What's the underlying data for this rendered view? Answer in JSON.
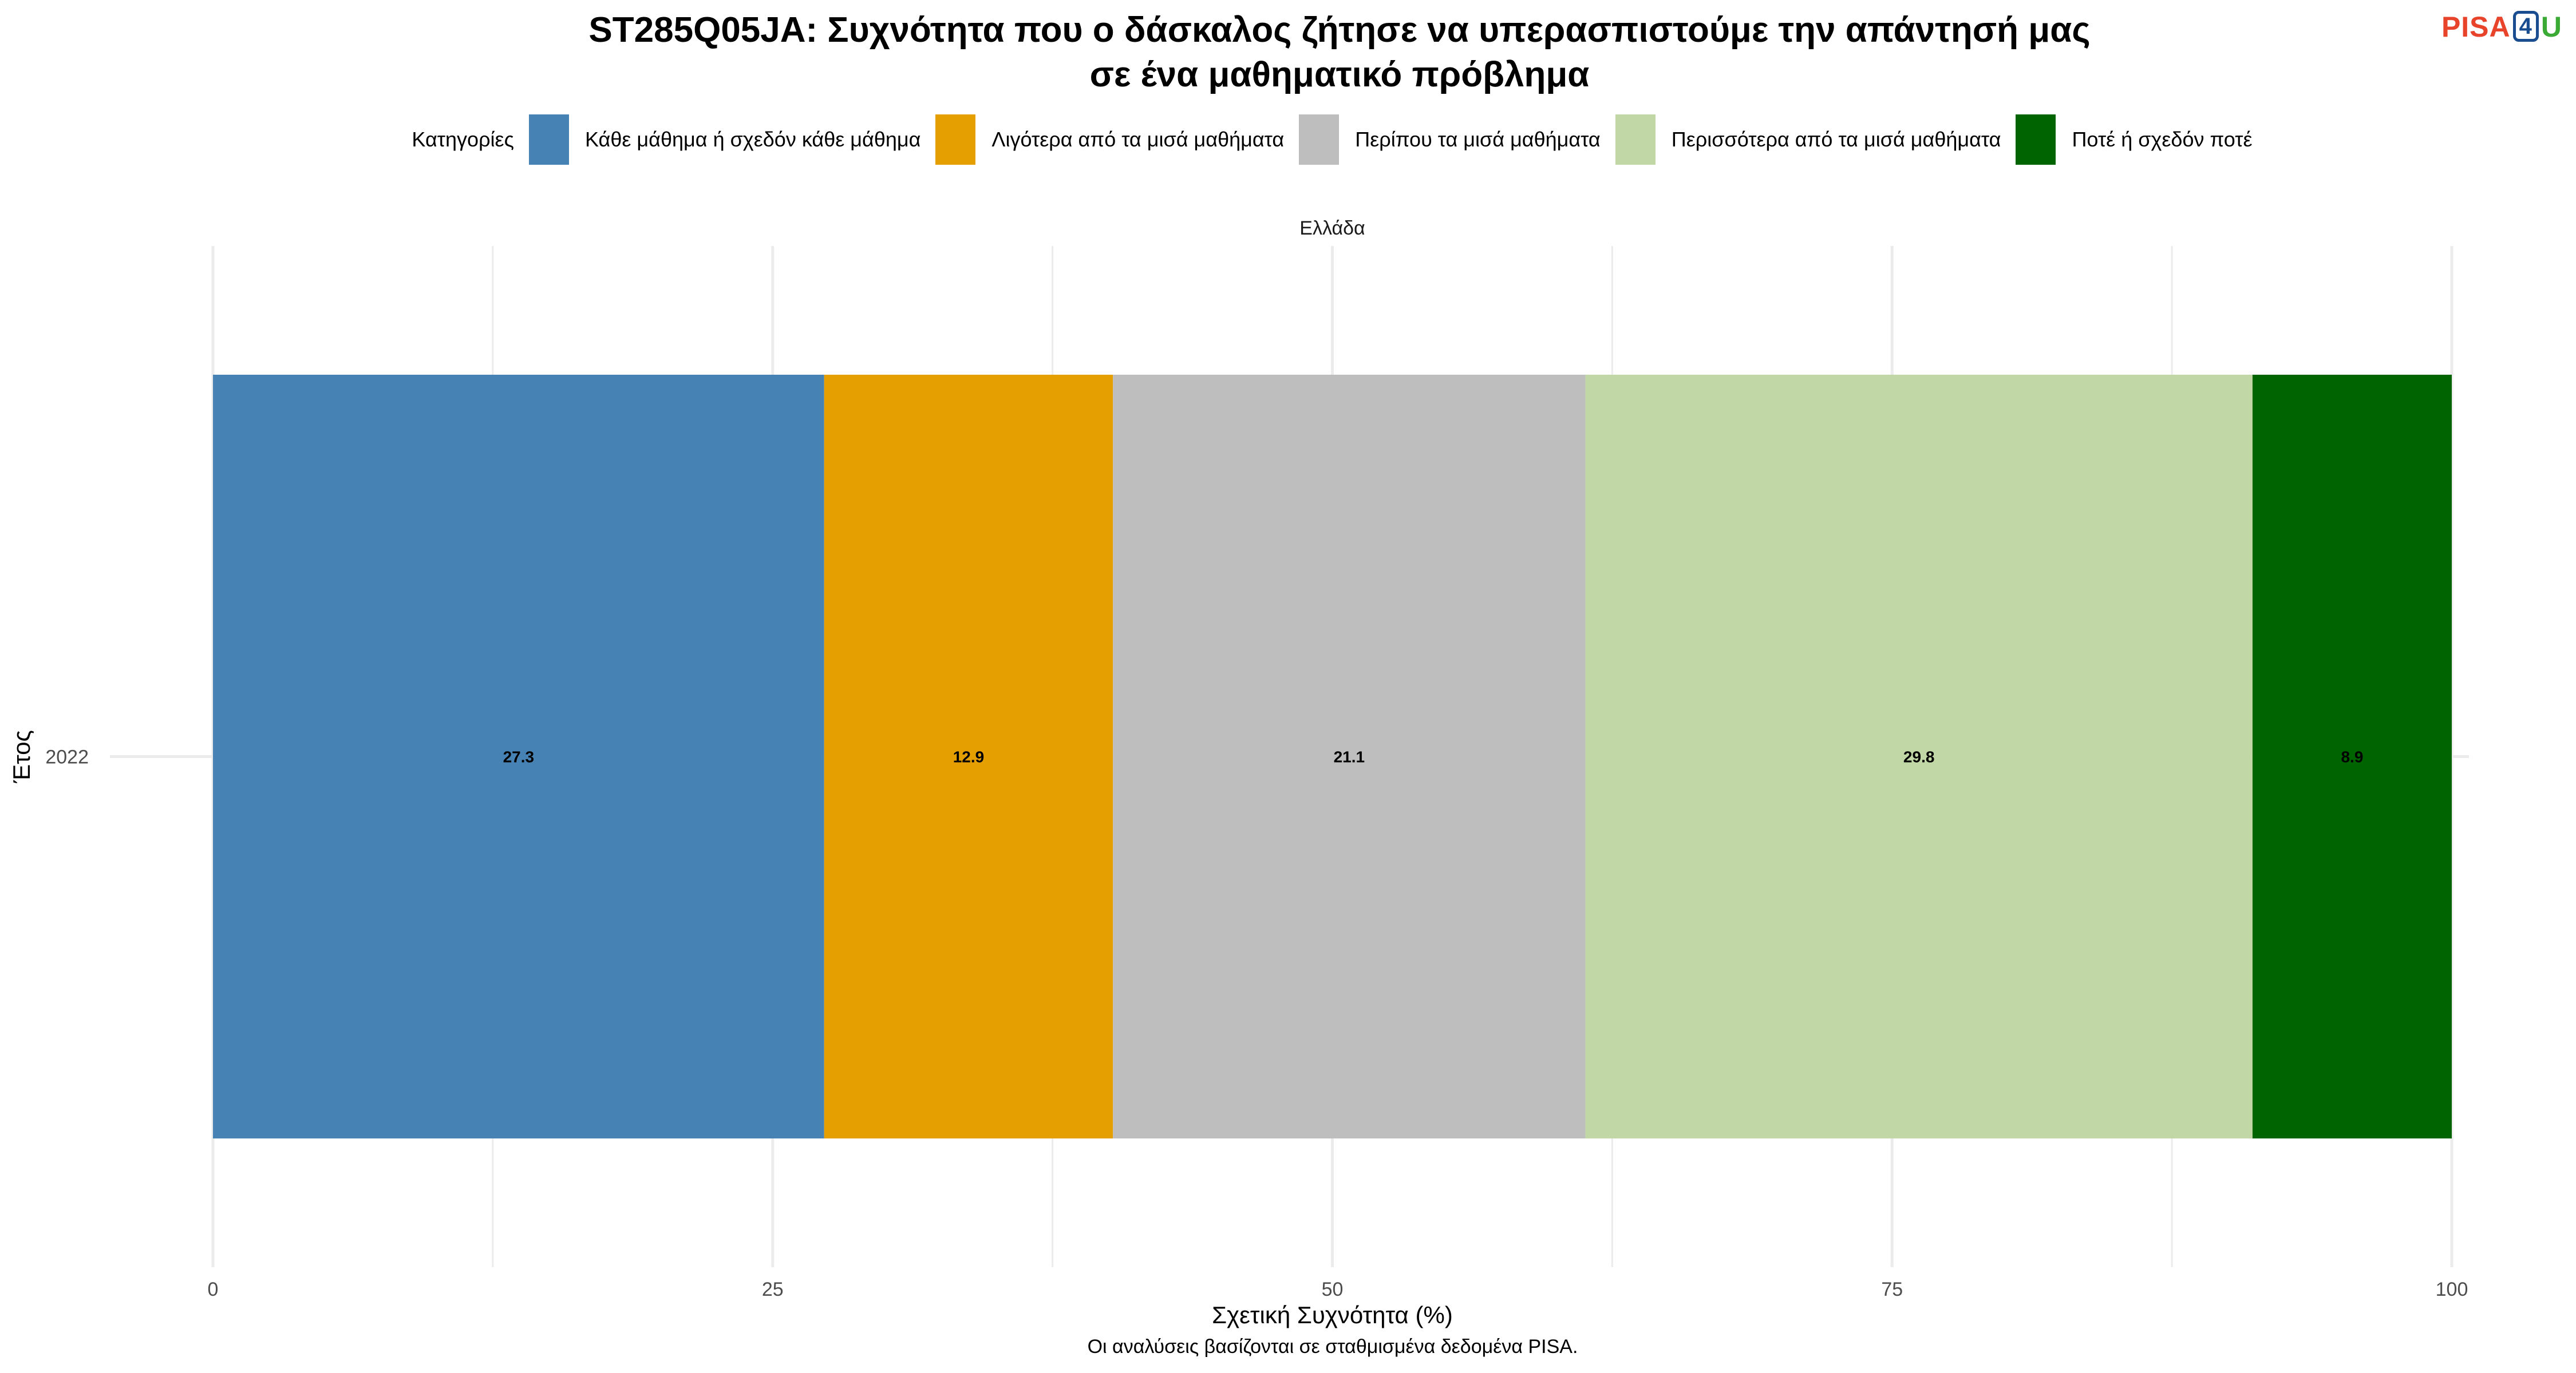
{
  "header": {
    "title_line1": "ST285Q05JA: Συχνότητα που ο δάσκαλος ζήτησε να υπερασπιστούμε την απάντησή μας",
    "title_line2": "σε ένα μαθηματικό πρόβλημα",
    "logo": {
      "part1": "PISA",
      "part2": "4",
      "part3": "U"
    }
  },
  "legend": {
    "title": "Κατηγορίες"
  },
  "caption": "Οι αναλύσεις βασίζονται σε σταθμισμένα δεδομένα PISA.",
  "colors": {
    "logo_red": "#e8432b",
    "logo_blue": "#1a4d8f",
    "logo_green": "#3aaa35",
    "grid": "#ebebeb",
    "axis_text": "#4d4d4d"
  },
  "chart_data": {
    "type": "bar",
    "orientation": "horizontal",
    "stacked": true,
    "facet": "Ελλάδα",
    "categories": [
      "2022"
    ],
    "xlabel": "Σχετική Συχνότητα (%)",
    "ylabel": "Έτος",
    "xlim": [
      0,
      100
    ],
    "xticks": [
      0,
      25,
      50,
      75,
      100
    ],
    "grid": true,
    "legend_position": "top",
    "series": [
      {
        "name": "Κάθε μάθημα ή σχεδόν κάθε μάθημα",
        "color": "#4682b4",
        "values": [
          27.3
        ],
        "labels": [
          "27.3"
        ]
      },
      {
        "name": "Λιγότερα από τα μισά μαθήματα",
        "color": "#e69f00",
        "values": [
          12.9
        ],
        "labels": [
          "12.9"
        ]
      },
      {
        "name": "Περίπου τα μισά μαθήματα",
        "color": "#bebebe",
        "values": [
          21.1
        ],
        "labels": [
          "21.1"
        ]
      },
      {
        "name": "Περισσότερα από τα μισά μαθήματα",
        "color": "#c1d7a6",
        "values": [
          29.8
        ],
        "labels": [
          "29.8"
        ]
      },
      {
        "name": "Ποτέ ή σχεδόν ποτέ",
        "color": "#006400",
        "values": [
          8.9
        ],
        "labels": [
          "8.9"
        ]
      }
    ]
  }
}
